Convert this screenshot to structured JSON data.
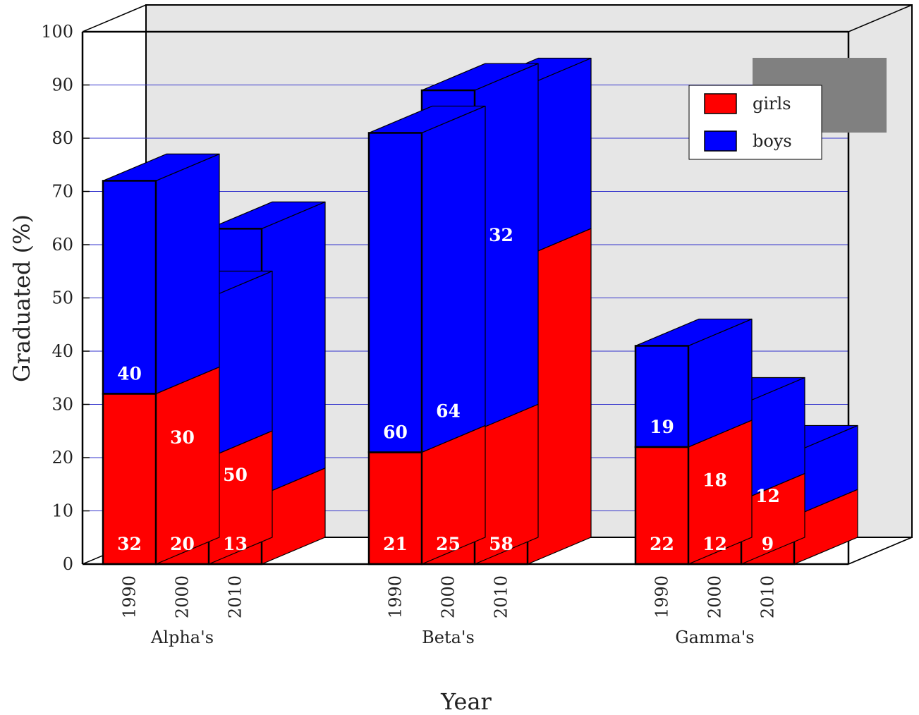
{
  "chart_data": {
    "type": "bar",
    "stacked": true,
    "style": "3d",
    "xlabel": "Year",
    "ylabel": "Graduated (%)",
    "ylim": [
      0,
      100
    ],
    "yticks": [
      0,
      10,
      20,
      30,
      40,
      50,
      60,
      70,
      80,
      90,
      100
    ],
    "grid": true,
    "legend_position": "top-right",
    "groups": [
      {
        "name": "Alpha's",
        "categories": [
          "1990",
          "2000",
          "2010"
        ]
      },
      {
        "name": "Beta's",
        "categories": [
          "1990",
          "2000",
          "2010"
        ]
      },
      {
        "name": "Gamma's",
        "categories": [
          "1990",
          "2000",
          "2010"
        ]
      }
    ],
    "series": [
      {
        "name": "girls",
        "color": "#ff0000",
        "values": [
          32,
          20,
          13,
          21,
          25,
          58,
          22,
          12,
          9
        ]
      },
      {
        "name": "boys",
        "color": "#0000ff",
        "values": [
          40,
          30,
          50,
          60,
          64,
          32,
          19,
          18,
          12
        ]
      }
    ]
  },
  "colors": {
    "back_panel": "#e6e6e6",
    "grid_line": "#3333cc",
    "legend_shadow": "#808080"
  }
}
